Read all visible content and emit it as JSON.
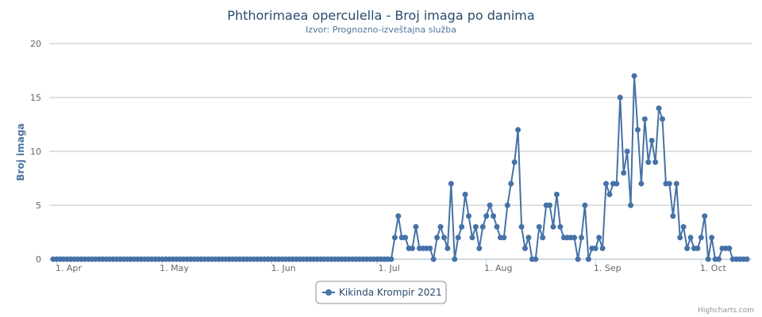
{
  "chart_data": {
    "type": "line",
    "title": "Phthorimaea operculella - Broj imaga po danima",
    "subtitle": "Izvor: Prognozno-izveštajna služba",
    "xlabel": "",
    "ylabel": "Broj imaga",
    "x_ticks": [
      "1. Apr",
      "1. May",
      "1. Jun",
      "1. Jul",
      "1. Aug",
      "1. Sep",
      "1. Oct"
    ],
    "y_ticks": [
      "0",
      "5",
      "10",
      "15",
      "20"
    ],
    "ylim": [
      0,
      20
    ],
    "grid": true,
    "legend_position": "bottom-center",
    "credits": "Highcharts.com",
    "x_start": "2021-03-31",
    "series": [
      {
        "name": "Kikinda Krompir 2021",
        "color": "#4572a7",
        "values": [
          0,
          0,
          0,
          0,
          0,
          0,
          0,
          0,
          0,
          0,
          0,
          0,
          0,
          0,
          0,
          0,
          0,
          0,
          0,
          0,
          0,
          0,
          0,
          0,
          0,
          0,
          0,
          0,
          0,
          0,
          0,
          0,
          0,
          0,
          0,
          0,
          0,
          0,
          0,
          0,
          0,
          0,
          0,
          0,
          0,
          0,
          0,
          0,
          0,
          0,
          0,
          0,
          0,
          0,
          0,
          0,
          0,
          0,
          0,
          0,
          0,
          0,
          0,
          0,
          0,
          0,
          0,
          0,
          0,
          0,
          0,
          0,
          0,
          0,
          0,
          0,
          0,
          0,
          0,
          0,
          0,
          0,
          0,
          0,
          0,
          0,
          0,
          0,
          0,
          0,
          0,
          0,
          0,
          0,
          0,
          0,
          0,
          2,
          4,
          2,
          2,
          1,
          1,
          3,
          1,
          1,
          1,
          1,
          0,
          2,
          3,
          2,
          1,
          7,
          0,
          2,
          3,
          6,
          4,
          2,
          3,
          1,
          3,
          4,
          5,
          4,
          3,
          2,
          2,
          5,
          7,
          9,
          12,
          3,
          1,
          2,
          0,
          0,
          3,
          2,
          5,
          5,
          3,
          6,
          3,
          2,
          2,
          2,
          2,
          0,
          2,
          5,
          0,
          1,
          1,
          2,
          1,
          7,
          6,
          7,
          7,
          15,
          8,
          10,
          5,
          17,
          12,
          7,
          13,
          9,
          11,
          9,
          14,
          13,
          7,
          7,
          4,
          7,
          2,
          3,
          1,
          2,
          1,
          1,
          2,
          4,
          0,
          2,
          0,
          0,
          1,
          1,
          1,
          0,
          0,
          0,
          0,
          0
        ]
      }
    ]
  }
}
